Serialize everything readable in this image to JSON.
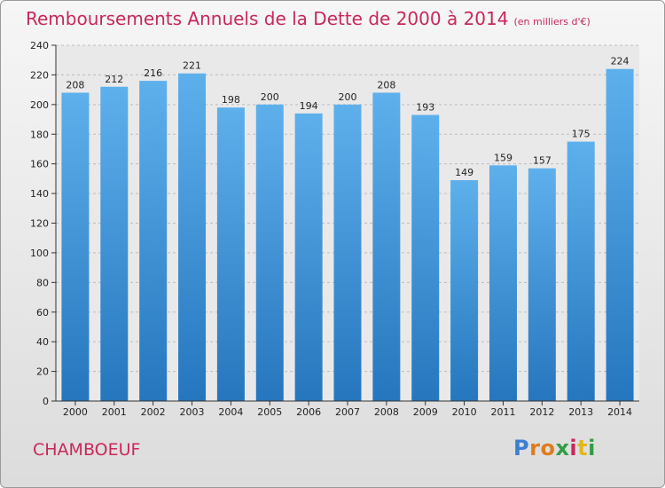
{
  "chart_data": {
    "type": "bar",
    "title": "Remboursements Annuels de la Dette de 2000 à 2014",
    "subtitle": "(en milliers d'€)",
    "categories": [
      "2000",
      "2001",
      "2002",
      "2003",
      "2004",
      "2005",
      "2006",
      "2007",
      "2008",
      "2009",
      "2010",
      "2011",
      "2012",
      "2013",
      "2014"
    ],
    "values": [
      208,
      212,
      216,
      221,
      198,
      200,
      194,
      200,
      208,
      193,
      149,
      159,
      157,
      175,
      224
    ],
    "ylim": [
      0,
      240
    ],
    "yticks": [
      0,
      20,
      40,
      60,
      80,
      100,
      120,
      140,
      160,
      180,
      200,
      220,
      240
    ],
    "grid": true,
    "bar_color": "#3d93d6",
    "title_color": "#c8285a"
  },
  "commune": "CHAMBOEUF",
  "logo": {
    "letters": [
      "P",
      "r",
      "o",
      "x",
      "i",
      "t",
      "i"
    ],
    "colors": [
      "#3a7fd0",
      "#e07b1c",
      "#e07b1c",
      "#2f9e44",
      "#c8285a",
      "#e0b81c",
      "#2f9e44"
    ]
  }
}
